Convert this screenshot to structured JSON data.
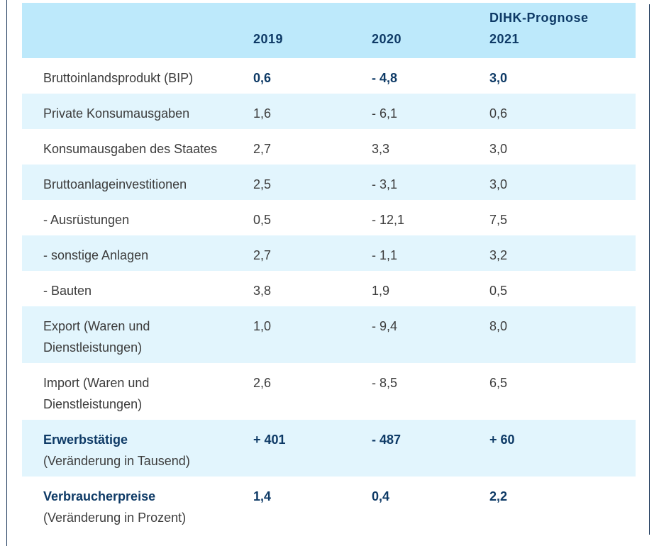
{
  "header": {
    "col_2019": "2019",
    "col_2020": "2020",
    "col_2021_pre": "DIHK-Prognose",
    "col_2021": "2021"
  },
  "rows": [
    {
      "label": "Bruttoinlandsprodukt (BIP)",
      "v2019": "0,6",
      "v2020": "- 4,8",
      "v2021": "3,0"
    },
    {
      "label": "Private Konsumausgaben",
      "v2019": "1,6",
      "v2020": "- 6,1",
      "v2021": "0,6"
    },
    {
      "label": "Konsumausgaben des Staates",
      "v2019": "2,7",
      "v2020": "3,3",
      "v2021": "3,0"
    },
    {
      "label": "Bruttoanlageinvestitionen",
      "v2019": "2,5",
      "v2020": "- 3,1",
      "v2021": "3,0"
    },
    {
      "label": "- Ausrüstungen",
      "v2019": "0,5",
      "v2020": "- 12,1",
      "v2021": "7,5"
    },
    {
      "label": "- sonstige Anlagen",
      "v2019": "2,7",
      "v2020": "- 1,1",
      "v2021": "3,2"
    },
    {
      "label": "- Bauten",
      "v2019": "3,8",
      "v2020": "1,9",
      "v2021": "0,5"
    },
    {
      "label_line1": "Export (Waren und",
      "label_line2": "Dienstleistungen)",
      "v2019": "1,0",
      "v2020": "- 9,4",
      "v2021": "8,0"
    },
    {
      "label_line1": "Import (Waren und",
      "label_line2": "Dienstleistungen)",
      "v2019": "2,6",
      "v2020": "- 8,5",
      "v2021": "6,5"
    },
    {
      "label": "Erwerbstätige",
      "sublabel": "(Veränderung in Tausend)",
      "v2019": "+ 401",
      "v2020": "- 487",
      "v2021": "+ 60"
    },
    {
      "label": "Verbraucherpreise",
      "sublabel": "(Veränderung in Prozent)",
      "v2019": "1,4",
      "v2020": "0,4",
      "v2021": "2,2"
    }
  ],
  "colors": {
    "header_bg": "#bde9fb",
    "stripe_bg": "#e2f5fd",
    "accent_text": "#0e3a66",
    "body_text": "#3c3c3c",
    "rule": "#1f3a5c"
  }
}
